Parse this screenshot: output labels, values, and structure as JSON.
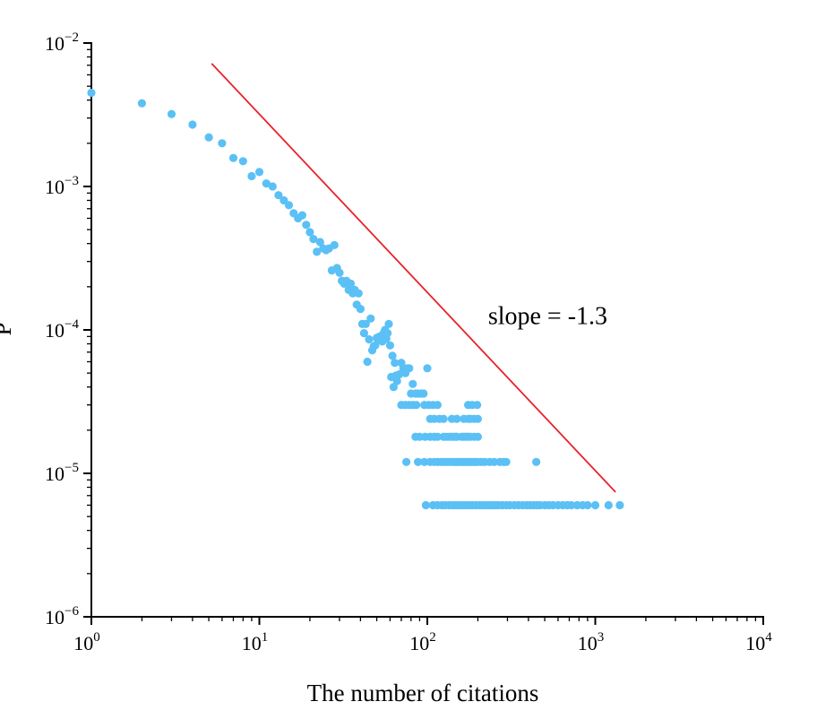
{
  "chart_data": {
    "type": "scatter",
    "title": "",
    "xlabel": "The number of citations",
    "ylabel": "P",
    "x_scale": "log",
    "y_scale": "log",
    "xlim": [
      1,
      10000
    ],
    "ylim": [
      1e-06,
      0.01
    ],
    "grid": false,
    "legend": "none",
    "x_ticks": [
      {
        "base": "10",
        "exp": "0",
        "value": 1
      },
      {
        "base": "10",
        "exp": "1",
        "value": 10
      },
      {
        "base": "10",
        "exp": "2",
        "value": 100
      },
      {
        "base": "10",
        "exp": "3",
        "value": 1000
      },
      {
        "base": "10",
        "exp": "4",
        "value": 10000
      }
    ],
    "y_ticks": [
      {
        "base": "10",
        "exp": "−6",
        "value": 1e-06
      },
      {
        "base": "10",
        "exp": "−5",
        "value": 1e-05
      },
      {
        "base": "10",
        "exp": "−4",
        "value": 0.0001
      },
      {
        "base": "10",
        "exp": "−3",
        "value": 0.001
      },
      {
        "base": "10",
        "exp": "−2",
        "value": 0.01
      }
    ],
    "marker_color": "#5BC0F5",
    "points": [
      [
        1,
        0.0045
      ],
      [
        2,
        0.0038
      ],
      [
        3,
        0.0032
      ],
      [
        4,
        0.0027
      ],
      [
        5,
        0.0022
      ],
      [
        6,
        0.002
      ],
      [
        7,
        0.00158
      ],
      [
        8,
        0.0015
      ],
      [
        9,
        0.00118
      ],
      [
        10,
        0.00126
      ],
      [
        11,
        0.00105
      ],
      [
        12,
        0.001
      ],
      [
        13,
        0.00087
      ],
      [
        14,
        0.0008
      ],
      [
        15,
        0.00074
      ],
      [
        16,
        0.00065
      ],
      [
        17,
        0.0006
      ],
      [
        18,
        0.00063
      ],
      [
        19,
        0.00054
      ],
      [
        20,
        0.00048
      ],
      [
        21,
        0.00043
      ],
      [
        22,
        0.00035
      ],
      [
        23,
        0.00041
      ],
      [
        24,
        0.00037
      ],
      [
        25,
        0.00036
      ],
      [
        26,
        0.00037
      ],
      [
        27,
        0.00026
      ],
      [
        28,
        0.00039
      ],
      [
        29,
        0.00027
      ],
      [
        30,
        0.00025
      ],
      [
        31,
        0.00022
      ],
      [
        32,
        0.00021
      ],
      [
        33,
        0.00022
      ],
      [
        34,
        0.00019
      ],
      [
        35,
        0.00021
      ],
      [
        36,
        0.00018
      ],
      [
        37,
        0.00019
      ],
      [
        38,
        0.00015
      ],
      [
        39,
        0.00018
      ],
      [
        40,
        0.00014
      ],
      [
        41,
        0.00011
      ],
      [
        42,
        9.5e-05
      ],
      [
        43,
        0.00011
      ],
      [
        44,
        6e-05
      ],
      [
        45,
        8.6e-05
      ],
      [
        46,
        0.00012
      ],
      [
        47,
        7.2e-05
      ],
      [
        48,
        7.7e-05
      ],
      [
        49,
        7.8e-05
      ],
      [
        50,
        8.8e-05
      ],
      [
        51,
        8.5e-05
      ],
      [
        52,
        9e-05
      ],
      [
        53,
        8.5e-05
      ],
      [
        54,
        8.3e-05
      ],
      [
        55,
        9.5e-05
      ],
      [
        56,
        0.0001
      ],
      [
        57,
        8.7e-05
      ],
      [
        58,
        9.5e-05
      ],
      [
        59,
        0.00011
      ],
      [
        60,
        7.8e-05
      ],
      [
        61,
        4.7e-05
      ],
      [
        62,
        6.6e-05
      ],
      [
        63,
        4e-05
      ],
      [
        64,
        5.9e-05
      ],
      [
        65,
        4.8e-05
      ],
      [
        66,
        4.4e-05
      ],
      [
        68,
        4.9e-05
      ],
      [
        70,
        5.9e-05
      ],
      [
        72,
        5.4e-05
      ],
      [
        74,
        5e-05
      ],
      [
        76,
        5.4e-05
      ],
      [
        78,
        5.4e-05
      ],
      [
        80,
        3.6e-05
      ],
      [
        82,
        4.2e-05
      ],
      [
        85,
        3.6e-05
      ],
      [
        88,
        3.6e-05
      ],
      [
        92,
        3.6e-05
      ],
      [
        95,
        3.6e-05
      ],
      [
        100,
        5.4e-05
      ],
      [
        104,
        2.4e-05
      ],
      [
        110,
        2.4e-05
      ],
      [
        118,
        2.4e-05
      ],
      [
        125,
        2.4e-05
      ],
      [
        140,
        2.4e-05
      ],
      [
        150,
        2.4e-05
      ],
      [
        165,
        2.4e-05
      ],
      [
        175,
        2.4e-05
      ],
      [
        180,
        2.4e-05
      ],
      [
        190,
        2.4e-05
      ],
      [
        200,
        2.4e-05
      ],
      [
        70,
        3e-05
      ],
      [
        74,
        3e-05
      ],
      [
        78,
        3e-05
      ],
      [
        82,
        3e-05
      ],
      [
        86,
        3e-05
      ],
      [
        96,
        3e-05
      ],
      [
        102,
        3e-05
      ],
      [
        108,
        3e-05
      ],
      [
        115,
        3e-05
      ],
      [
        175,
        3e-05
      ],
      [
        185,
        3e-05
      ],
      [
        198,
        3e-05
      ],
      [
        85,
        1.8e-05
      ],
      [
        90,
        1.8e-05
      ],
      [
        97,
        1.8e-05
      ],
      [
        104,
        1.8e-05
      ],
      [
        110,
        1.8e-05
      ],
      [
        115,
        1.8e-05
      ],
      [
        125,
        1.8e-05
      ],
      [
        130,
        1.8e-05
      ],
      [
        136,
        1.8e-05
      ],
      [
        140,
        1.8e-05
      ],
      [
        145,
        1.8e-05
      ],
      [
        150,
        1.8e-05
      ],
      [
        160,
        1.8e-05
      ],
      [
        165,
        1.8e-05
      ],
      [
        170,
        1.8e-05
      ],
      [
        175,
        1.8e-05
      ],
      [
        180,
        1.8e-05
      ],
      [
        190,
        1.8e-05
      ],
      [
        200,
        1.8e-05
      ],
      [
        75,
        1.2e-05
      ],
      [
        88,
        1.2e-05
      ],
      [
        96,
        1.2e-05
      ],
      [
        104,
        1.2e-05
      ],
      [
        110,
        1.2e-05
      ],
      [
        115,
        1.2e-05
      ],
      [
        120,
        1.2e-05
      ],
      [
        125,
        1.2e-05
      ],
      [
        130,
        1.2e-05
      ],
      [
        135,
        1.2e-05
      ],
      [
        140,
        1.2e-05
      ],
      [
        145,
        1.2e-05
      ],
      [
        150,
        1.2e-05
      ],
      [
        155,
        1.2e-05
      ],
      [
        160,
        1.2e-05
      ],
      [
        165,
        1.2e-05
      ],
      [
        170,
        1.2e-05
      ],
      [
        175,
        1.2e-05
      ],
      [
        180,
        1.2e-05
      ],
      [
        185,
        1.2e-05
      ],
      [
        190,
        1.2e-05
      ],
      [
        195,
        1.2e-05
      ],
      [
        200,
        1.2e-05
      ],
      [
        210,
        1.2e-05
      ],
      [
        220,
        1.2e-05
      ],
      [
        235,
        1.2e-05
      ],
      [
        250,
        1.2e-05
      ],
      [
        270,
        1.2e-05
      ],
      [
        285,
        1.2e-05
      ],
      [
        295,
        1.2e-05
      ],
      [
        445,
        1.2e-05
      ],
      [
        98,
        6e-06
      ],
      [
        108,
        6e-06
      ],
      [
        115,
        6e-06
      ],
      [
        122,
        6e-06
      ],
      [
        128,
        6e-06
      ],
      [
        135,
        6e-06
      ],
      [
        142,
        6e-06
      ],
      [
        148,
        6e-06
      ],
      [
        155,
        6e-06
      ],
      [
        162,
        6e-06
      ],
      [
        170,
        6e-06
      ],
      [
        178,
        6e-06
      ],
      [
        186,
        6e-06
      ],
      [
        195,
        6e-06
      ],
      [
        205,
        6e-06
      ],
      [
        215,
        6e-06
      ],
      [
        225,
        6e-06
      ],
      [
        235,
        6e-06
      ],
      [
        245,
        6e-06
      ],
      [
        255,
        6e-06
      ],
      [
        265,
        6e-06
      ],
      [
        280,
        6e-06
      ],
      [
        295,
        6e-06
      ],
      [
        310,
        6e-06
      ],
      [
        330,
        6e-06
      ],
      [
        350,
        6e-06
      ],
      [
        370,
        6e-06
      ],
      [
        390,
        6e-06
      ],
      [
        410,
        6e-06
      ],
      [
        430,
        6e-06
      ],
      [
        450,
        6e-06
      ],
      [
        470,
        6e-06
      ],
      [
        500,
        6e-06
      ],
      [
        530,
        6e-06
      ],
      [
        560,
        6e-06
      ],
      [
        600,
        6e-06
      ],
      [
        640,
        6e-06
      ],
      [
        680,
        6e-06
      ],
      [
        720,
        6e-06
      ],
      [
        780,
        6e-06
      ],
      [
        840,
        6e-06
      ],
      [
        900,
        6e-06
      ],
      [
        1000,
        6e-06
      ],
      [
        1200,
        6e-06
      ],
      [
        1400,
        6e-06
      ]
    ],
    "fit_line": {
      "color": "#E8222B",
      "from": [
        5.2,
        0.0072
      ],
      "to": [
        1320,
        7.4e-06
      ],
      "label": "slope = -1.3"
    }
  }
}
